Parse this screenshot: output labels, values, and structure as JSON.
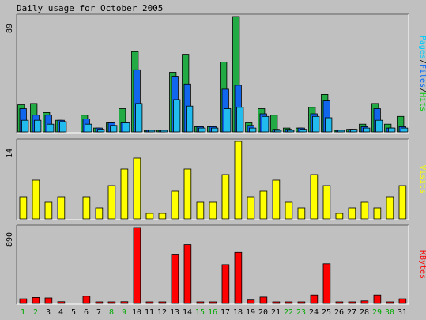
{
  "chart_data": {
    "type": "bar",
    "title": "Daily usage for October 2005",
    "categories": [
      "1",
      "2",
      "3",
      "4",
      "5",
      "6",
      "7",
      "8",
      "9",
      "10",
      "11",
      "12",
      "13",
      "14",
      "15",
      "16",
      "17",
      "18",
      "19",
      "20",
      "21",
      "22",
      "23",
      "24",
      "25",
      "26",
      "27",
      "28",
      "29",
      "30",
      "31"
    ],
    "weekend_days": [
      "1",
      "2",
      "8",
      "9",
      "15",
      "16",
      "22",
      "23",
      "29",
      "30"
    ],
    "panels": [
      {
        "name": "traffic",
        "ymax_label": "89",
        "ymax": 89,
        "label_parts": [
          {
            "text": "Pages",
            "color": "#00ccff"
          },
          {
            "text": "/",
            "color": "#000000"
          },
          {
            "text": "Files",
            "color": "#0066ff"
          },
          {
            "text": "/",
            "color": "#000000"
          },
          {
            "text": "Hits",
            "color": "#00cc00"
          }
        ],
        "series": [
          {
            "name": "Hits",
            "color": "#22aa44",
            "values": [
              21,
              22,
              15,
              9,
              0,
              13,
              3,
              7,
              18,
              62,
              1,
              1,
              46,
              60,
              4,
              4,
              54,
              89,
              7,
              18,
              13,
              3,
              3,
              19,
              29,
              1,
              2,
              6,
              22,
              6,
              12
            ]
          },
          {
            "name": "Files",
            "color": "#1166ee",
            "values": [
              18,
              13,
              13,
              9,
              0,
              10,
              3,
              7,
              7,
              48,
              1,
              1,
              43,
              37,
              4,
              4,
              33,
              36,
              5,
              14,
              2,
              2,
              3,
              14,
              24,
              1,
              2,
              4,
              18,
              3,
              4
            ]
          },
          {
            "name": "Pages",
            "color": "#22bbee",
            "values": [
              9,
              9,
              6,
              8,
              0,
              6,
              2,
              5,
              7,
              22,
              1,
              1,
              25,
              20,
              3,
              3,
              18,
              19,
              3,
              12,
              1,
              1,
              2,
              12,
              11,
              1,
              2,
              3,
              9,
              3,
              3
            ]
          }
        ]
      },
      {
        "name": "visits",
        "ymax_label": "14",
        "ymax": 14,
        "label_parts": [
          {
            "text": "Visits",
            "color": "#ffff00"
          }
        ],
        "series": [
          {
            "name": "Visits",
            "color": "#ffff00",
            "values": [
              4,
              7,
              3,
              4,
              0,
              4,
              2,
              6,
              9,
              11,
              1,
              1,
              5,
              9,
              3,
              3,
              8,
              14,
              4,
              5,
              7,
              3,
              2,
              8,
              6,
              1,
              2,
              3,
              2,
              4,
              6
            ]
          }
        ]
      },
      {
        "name": "kbytes",
        "ymax_label": "890",
        "ymax": 890,
        "label_parts": [
          {
            "text": "KBytes",
            "color": "#ff0000"
          }
        ],
        "series": [
          {
            "name": "KBytes",
            "color": "#ff0000",
            "values": [
              55,
              70,
              65,
              20,
              0,
              85,
              10,
              15,
              20,
              890,
              5,
              5,
              570,
              690,
              10,
              15,
              455,
              600,
              40,
              75,
              5,
              5,
              5,
              100,
              465,
              5,
              5,
              30,
              100,
              10,
              55
            ]
          }
        ]
      }
    ]
  }
}
